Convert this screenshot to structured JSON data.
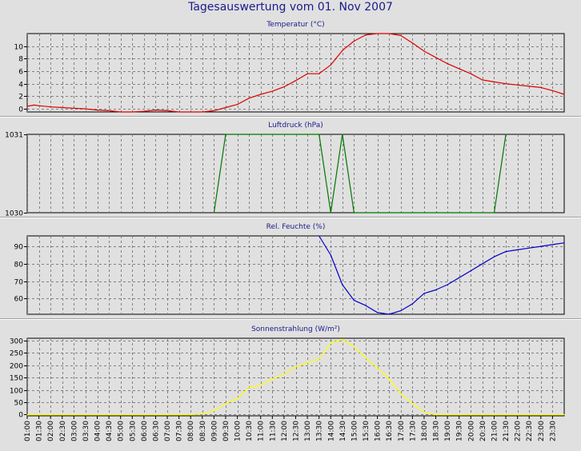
{
  "title": "Tagesauswertung vom 01. Nov 2007",
  "colors": {
    "background": "#e0e0e0",
    "title": "#1a1a8c",
    "grid": "#808080",
    "temperature": "#dd0000",
    "pressure": "#007700",
    "humidity": "#0000cc",
    "solar": "#ffff00"
  },
  "x_ticks": [
    "01:00",
    "01:30",
    "02:00",
    "02:30",
    "03:00",
    "03:30",
    "04:00",
    "04:30",
    "05:00",
    "05:30",
    "06:00",
    "06:30",
    "07:00",
    "07:30",
    "08:00",
    "08:30",
    "09:00",
    "09:30",
    "10:00",
    "10:30",
    "11:00",
    "11:30",
    "12:00",
    "12:30",
    "13:00",
    "13:30",
    "14:00",
    "14:30",
    "15:00",
    "15:30",
    "16:00",
    "16:30",
    "17:00",
    "17:30",
    "18:00",
    "18:30",
    "19:00",
    "19:30",
    "20:00",
    "20:30",
    "21:00",
    "21:30",
    "22:00",
    "22:30",
    "23:00",
    "23:30"
  ],
  "chart_data": [
    {
      "type": "line",
      "title": "Temperatur (°C)",
      "xlim": [
        0.5,
        23.5
      ],
      "ylim": [
        -0.5,
        12
      ],
      "yticks": [
        0,
        2,
        4,
        6,
        8,
        10
      ],
      "grid": true,
      "series": [
        {
          "color": "#dd0000",
          "x": [
            0.5,
            0.8,
            1,
            1.5,
            2,
            2.5,
            3,
            3.5,
            4,
            4.5,
            5,
            5.5,
            6,
            6.5,
            7,
            7.5,
            8,
            8.5,
            9,
            9.5,
            10,
            10.5,
            11,
            11.5,
            12,
            12.5,
            13,
            13.5,
            14,
            14.5,
            15,
            15.5,
            16,
            16.5,
            17,
            17.5,
            18,
            18.5,
            19,
            19.5,
            20,
            20.5,
            21,
            21.5,
            22,
            22.5,
            23,
            23.5
          ],
          "y": [
            0.4,
            0.6,
            0.5,
            0.3,
            0.2,
            0.1,
            0,
            -0.2,
            -0.3,
            -0.5,
            -0.6,
            -0.4,
            -0.2,
            -0.3,
            -0.7,
            -0.8,
            -0.6,
            -0.3,
            0.2,
            0.7,
            1.7,
            2.3,
            2.8,
            3.5,
            4.5,
            5.6,
            5.6,
            7,
            9.3,
            10.8,
            11.8,
            12,
            12,
            11.7,
            10.5,
            9.2,
            8.2,
            7.2,
            6.4,
            5.6,
            4.6,
            4.3,
            4,
            3.8,
            3.6,
            3.4,
            2.9,
            2.3
          ]
        }
      ]
    },
    {
      "type": "line",
      "title": "Luftdruck (hPa)",
      "xlim": [
        0.5,
        23.5
      ],
      "ylim": [
        1030,
        1031
      ],
      "yticks": [
        1030,
        1031
      ],
      "grid": true,
      "series": [
        {
          "color": "#007700",
          "x": [
            8.5,
            9,
            13,
            13.5,
            14,
            14.5,
            20.5,
            21
          ],
          "y": [
            1030,
            1031,
            1031,
            1030,
            1031,
            1030,
            1030,
            1031
          ]
        }
      ]
    },
    {
      "type": "line",
      "title": "Rel. Feuchte (%)",
      "xlim": [
        0.5,
        23.5
      ],
      "ylim": [
        51,
        96
      ],
      "yticks": [
        60,
        70,
        80,
        90
      ],
      "grid": true,
      "series": [
        {
          "color": "#0000cc",
          "x": [
            13,
            13.5,
            14,
            14.5,
            15,
            15.5,
            16,
            16.5,
            17,
            17.5,
            18,
            18.5,
            19,
            19.5,
            20,
            20.5,
            21,
            21.5,
            22,
            22.5,
            23,
            23.5
          ],
          "y": [
            96,
            85,
            68,
            59,
            56,
            52,
            51,
            53,
            57,
            63,
            65,
            68,
            72,
            76,
            80,
            84,
            87,
            88,
            89,
            90,
            91,
            92
          ]
        }
      ]
    },
    {
      "type": "area",
      "title": "Sonnenstrahlung (W/m²)",
      "xlim": [
        0.5,
        23.5
      ],
      "ylim": [
        -5,
        310
      ],
      "yticks": [
        0,
        50,
        100,
        150,
        200,
        250,
        300
      ],
      "grid": true,
      "series": [
        {
          "color": "#ffff00",
          "x": [
            0.5,
            7,
            7.5,
            8,
            8.5,
            9,
            9.5,
            10,
            10.5,
            11,
            11.5,
            12,
            12.5,
            13,
            13.5,
            14,
            14.5,
            15,
            15.5,
            16,
            16.5,
            17,
            17.5,
            18,
            18.5,
            23.5
          ],
          "y": [
            0,
            0,
            0,
            3,
            15,
            45,
            65,
            110,
            120,
            145,
            165,
            195,
            210,
            225,
            290,
            305,
            275,
            230,
            190,
            145,
            85,
            45,
            10,
            0,
            0,
            0
          ]
        }
      ]
    }
  ]
}
